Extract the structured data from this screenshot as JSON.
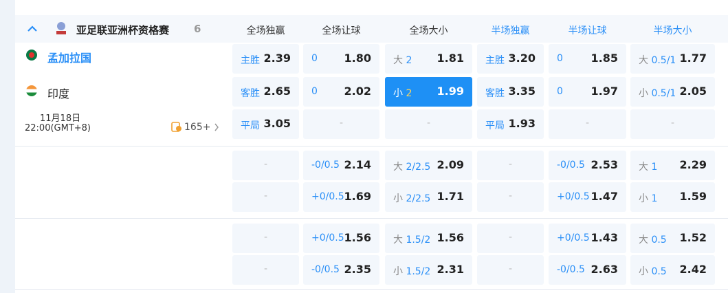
{
  "league": {
    "name": "亚足联亚洲杯资格赛",
    "count": "6"
  },
  "columns": [
    "全场独赢",
    "全场让球",
    "全场大小",
    "半场独赢",
    "半场让球",
    "半场大小"
  ],
  "match": {
    "home": "孟加拉国",
    "away": "印度",
    "date": "11月18日",
    "time": "22:00(GMT+8)",
    "more": "165+"
  },
  "groups": [
    {
      "rows": [
        [
          {
            "label": "主胜",
            "odds": "2.39"
          },
          {
            "line": "0",
            "odds": "1.80"
          },
          {
            "side": "大",
            "line": "2",
            "odds": "1.81"
          },
          {
            "label": "主胜",
            "odds": "3.20"
          },
          {
            "line": "0",
            "odds": "1.85"
          },
          {
            "side": "大",
            "line": "0.5/1",
            "odds": "1.77"
          }
        ],
        [
          {
            "label": "客胜",
            "odds": "2.65"
          },
          {
            "line": "0",
            "odds": "2.02"
          },
          {
            "side": "小",
            "line": "2",
            "odds": "1.99",
            "selected": true
          },
          {
            "label": "客胜",
            "odds": "3.35"
          },
          {
            "line": "0",
            "odds": "1.97"
          },
          {
            "side": "小",
            "line": "0.5/1",
            "odds": "2.05"
          }
        ],
        [
          {
            "label": "平局",
            "odds": "3.05"
          },
          {
            "text": "-"
          },
          {
            "text": "-"
          },
          {
            "label": "平局",
            "odds": "1.93"
          },
          {
            "text": "-"
          },
          {
            "text": "-"
          }
        ]
      ]
    },
    {
      "rows": [
        [
          {
            "text": "-"
          },
          {
            "line": "-0/0.5",
            "odds": "2.14"
          },
          {
            "side": "大",
            "line": "2/2.5",
            "odds": "2.09"
          },
          {
            "text": "-"
          },
          {
            "line": "-0/0.5",
            "odds": "2.53"
          },
          {
            "side": "大",
            "line": "1",
            "odds": "2.29"
          }
        ],
        [
          {
            "text": "-"
          },
          {
            "line": "+0/0.5",
            "odds": "1.69"
          },
          {
            "side": "小",
            "line": "2/2.5",
            "odds": "1.71"
          },
          {
            "text": "-"
          },
          {
            "line": "+0/0.5",
            "odds": "1.47"
          },
          {
            "side": "小",
            "line": "1",
            "odds": "1.59"
          }
        ]
      ]
    },
    {
      "rows": [
        [
          {
            "text": "-"
          },
          {
            "line": "+0/0.5",
            "odds": "1.56"
          },
          {
            "side": "大",
            "line": "1.5/2",
            "odds": "1.56"
          },
          {
            "text": "-"
          },
          {
            "line": "+0/0.5",
            "odds": "1.43"
          },
          {
            "side": "大",
            "line": "0.5",
            "odds": "1.52"
          }
        ],
        [
          {
            "text": "-"
          },
          {
            "line": "-0/0.5",
            "odds": "2.35"
          },
          {
            "side": "小",
            "line": "1.5/2",
            "odds": "2.31"
          },
          {
            "text": "-"
          },
          {
            "line": "-0/0.5",
            "odds": "2.63"
          },
          {
            "side": "小",
            "line": "0.5",
            "odds": "2.42"
          }
        ]
      ]
    }
  ]
}
